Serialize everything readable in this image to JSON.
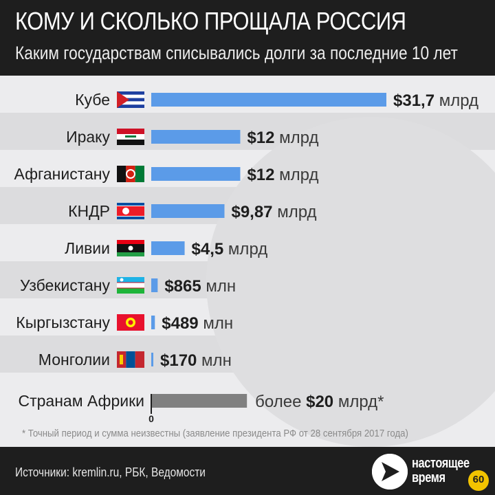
{
  "header": {
    "title": "КОМУ И СКОЛЬКО ПРОЩАЛА РОССИЯ",
    "subtitle": "Каким государствам списывались долги за последние 10 лет"
  },
  "chart_data": {
    "type": "bar",
    "orientation": "horizontal",
    "categories": [
      "Кубе",
      "Ираку",
      "Афганистану",
      "КНДР",
      "Ливии",
      "Узбекистану",
      "Кыргызстану",
      "Монголии",
      "Странам Африки"
    ],
    "values": [
      31.7,
      12,
      12,
      9.87,
      4.5,
      0.865,
      0.489,
      0.17,
      20
    ],
    "value_unit": "млрд $",
    "amount_labels": [
      "$31,7",
      "$12",
      "$12",
      "$9,87",
      "$4,5",
      "$865",
      "$489",
      "$170",
      "$20"
    ],
    "unit_labels": [
      "млрд",
      "млрд",
      "млрд",
      "млрд",
      "млрд",
      "млн",
      "млн",
      "млн",
      "млрд*"
    ],
    "prefix_labels": [
      "",
      "",
      "",
      "",
      "",
      "",
      "",
      "",
      "более"
    ],
    "flags": [
      "cuba-flag",
      "iraq-flag",
      "afghanistan-flag",
      "north-korea-flag",
      "libya-flag",
      "uzbekistan-flag",
      "kyrgyzstan-flag",
      "mongolia-flag",
      ""
    ],
    "colors": {
      "bar": "#5b9be8",
      "africa_bar": "#808080"
    },
    "axis_zero_label": "0",
    "xlim": [
      0,
      31.7
    ],
    "grid": false
  },
  "footnote": "* Точный период и сумма неизвестны (заявление президента РФ от 28 сентября 2017 года)",
  "footer": {
    "sources": "Источники: kremlin.ru, РБК, Ведомости",
    "logo_line1": "настоящее",
    "logo_line2": "время",
    "badge": "60"
  }
}
